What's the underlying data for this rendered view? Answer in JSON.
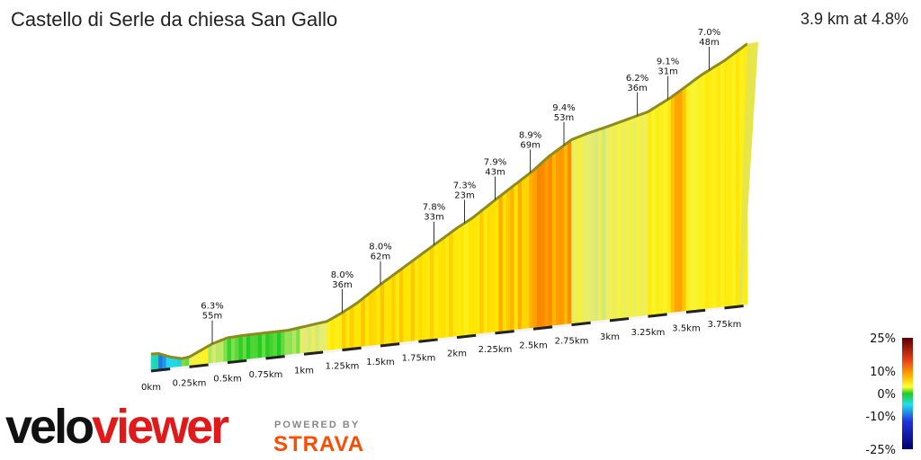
{
  "title": "Castello di Serle da chiesa San Gallo",
  "summary": "3.9 km at 4.8%",
  "brand": {
    "velo": "velo",
    "viewer": "viewer",
    "powered_by": "POWERED BY",
    "strava": "STRAVA"
  },
  "colors": {
    "outline": "#8c8c1e",
    "brand_red": "#e01a1a",
    "strava_orange": "#fc4c02"
  },
  "chart_data": {
    "type": "area",
    "x_unit": "km",
    "x_ticks": [
      "0km",
      "0.25km",
      "0.5km",
      "0.75km",
      "1km",
      "1.25km",
      "1.5km",
      "1.75km",
      "2km",
      "2.25km",
      "2.5km",
      "2.75km",
      "3km",
      "3.25km",
      "3.5km",
      "3.75km"
    ],
    "x_tick_values": [
      0,
      0.25,
      0.5,
      0.75,
      1,
      1.25,
      1.5,
      1.75,
      2,
      2.25,
      2.5,
      2.75,
      3,
      3.25,
      3.5,
      3.75
    ],
    "total_distance_km": 3.9,
    "profile": [
      {
        "x": 0.0,
        "elev": 0,
        "grade": 0
      },
      {
        "x": 0.05,
        "elev": 0,
        "grade": -3
      },
      {
        "x": 0.12,
        "elev": -3,
        "grade": -7
      },
      {
        "x": 0.2,
        "elev": -5,
        "grade": -4
      },
      {
        "x": 0.25,
        "elev": -4,
        "grade": 1
      },
      {
        "x": 0.3,
        "elev": -1,
        "grade": 5
      },
      {
        "x": 0.4,
        "elev": 5,
        "grade": 6
      },
      {
        "x": 0.5,
        "elev": 9,
        "grade": 3
      },
      {
        "x": 0.6,
        "elev": 10,
        "grade": 1
      },
      {
        "x": 0.75,
        "elev": 11,
        "grade": 0.5
      },
      {
        "x": 0.9,
        "elev": 12,
        "grade": 0.5
      },
      {
        "x": 1.0,
        "elev": 14,
        "grade": 2
      },
      {
        "x": 1.15,
        "elev": 17,
        "grade": 4
      },
      {
        "x": 1.25,
        "elev": 23,
        "grade": 7
      },
      {
        "x": 1.35,
        "elev": 30,
        "grade": 8
      },
      {
        "x": 1.5,
        "elev": 43,
        "grade": 8
      },
      {
        "x": 1.75,
        "elev": 63,
        "grade": 8
      },
      {
        "x": 2.0,
        "elev": 83,
        "grade": 7.8
      },
      {
        "x": 2.1,
        "elev": 90,
        "grade": 7.3
      },
      {
        "x": 2.25,
        "elev": 103,
        "grade": 7.9
      },
      {
        "x": 2.5,
        "elev": 124,
        "grade": 8.5
      },
      {
        "x": 2.6,
        "elev": 134,
        "grade": 10
      },
      {
        "x": 2.75,
        "elev": 146,
        "grade": 9.4
      },
      {
        "x": 2.85,
        "elev": 150,
        "grade": 5
      },
      {
        "x": 3.0,
        "elev": 155,
        "grade": 4
      },
      {
        "x": 3.25,
        "elev": 164,
        "grade": 5
      },
      {
        "x": 3.4,
        "elev": 174,
        "grade": 6.5
      },
      {
        "x": 3.5,
        "elev": 182,
        "grade": 9.1
      },
      {
        "x": 3.6,
        "elev": 190,
        "grade": 6
      },
      {
        "x": 3.75,
        "elev": 200,
        "grade": 7
      },
      {
        "x": 3.9,
        "elev": 212,
        "grade": 7
      }
    ],
    "annotations": [
      {
        "x": 0.4,
        "grade": "6.3%",
        "dist": "55m"
      },
      {
        "x": 1.25,
        "grade": "8.0%",
        "dist": "36m"
      },
      {
        "x": 1.5,
        "grade": "8.0%",
        "dist": "62m"
      },
      {
        "x": 1.85,
        "grade": "7.8%",
        "dist": "33m"
      },
      {
        "x": 2.05,
        "grade": "7.3%",
        "dist": "23m"
      },
      {
        "x": 2.25,
        "grade": "7.9%",
        "dist": "43m"
      },
      {
        "x": 2.48,
        "grade": "8.9%",
        "dist": "69m"
      },
      {
        "x": 2.7,
        "grade": "9.4%",
        "dist": "53m"
      },
      {
        "x": 3.18,
        "grade": "6.2%",
        "dist": "36m"
      },
      {
        "x": 3.38,
        "grade": "9.1%",
        "dist": "31m"
      },
      {
        "x": 3.65,
        "grade": "7.0%",
        "dist": "48m"
      }
    ],
    "gradient_scale": {
      "labels": [
        "25%",
        "10%",
        "0%",
        "-10%",
        "-25%"
      ],
      "values": [
        25,
        10,
        0,
        -10,
        -25
      ]
    }
  }
}
